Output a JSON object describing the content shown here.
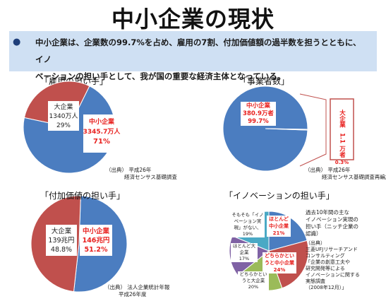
{
  "title": "中小企業の現状",
  "bullet": {
    "line1": "中小企業は、企業数の99.7%を占め、雇用の7割、付加価値額の過半数を担うとともに、イノ",
    "line2": "ベーションの担い手として、我が国の重要な経済主体となっている。"
  },
  "colors": {
    "blue": "#4b7dc0",
    "red": "#c0504d",
    "green": "#9bbb59",
    "purple": "#7f62a4",
    "teal": "#4aa9c5",
    "bright_red": "#e8201e",
    "banner": "#cfe0f3"
  },
  "chart_data": [
    {
      "type": "pie",
      "title": "「雇用の担い手」",
      "slices": [
        {
          "name": "中小企業",
          "value_text": "3345.7万人",
          "pct_text": "71%",
          "value": 71
        },
        {
          "name": "大企業",
          "value_text": "1340万人",
          "pct_text": "29%",
          "value": 29
        }
      ],
      "source": {
        "line1": "（出典） 平成26年",
        "line2": "経済センサス基礎調査"
      }
    },
    {
      "type": "pie",
      "title": "「事業者数」",
      "slices": [
        {
          "name": "中小企業",
          "value_text": "380.9万者",
          "pct_text": "99.7%",
          "value": 99.7
        },
        {
          "name": "大企業",
          "value_text": "1.1 万者",
          "pct_text": "0.3%",
          "value": 0.3
        }
      ],
      "source": {
        "line1": "（出典） 平成26年",
        "line2": "経済センサス基礎調査再編加工"
      }
    },
    {
      "type": "pie",
      "title": "「付加価値の担い手」",
      "slices": [
        {
          "name": "中小企業",
          "value_text": "146兆円",
          "pct_text": "51.2%",
          "value": 51.2
        },
        {
          "name": "大企業",
          "value_text": "139兆円",
          "pct_text": "48.8%",
          "value": 48.8
        }
      ],
      "source": {
        "line1": "（出典） 法人企業統計年報",
        "line2": "平成26年度"
      }
    },
    {
      "type": "pie",
      "title": "「イノベーションの担い手」",
      "slices": [
        {
          "name": "ほとんど中小企業",
          "pct_text": "21%",
          "value": 21
        },
        {
          "name": "どちらかというと中小企業",
          "pct_text": "24%",
          "value": 24
        },
        {
          "name": "どちらかというと大企業",
          "pct_text": "20%",
          "value": 20
        },
        {
          "name": "ほとんど大企業",
          "pct_text": "17%",
          "value": 17
        },
        {
          "name": "そもそも「イノベーション実現」がない",
          "pct_text": "19%",
          "value": 19
        }
      ],
      "note": {
        "line1": "過去10年間の主な",
        "line2": "イノベーション実現の",
        "line3": "担い手（ニッチ企業の",
        "line4": "認識）"
      },
      "source": {
        "line1": "（出典）",
        "line2": "三菱UFJリサーチアンド",
        "line3": "コンサルティング",
        "line4": "「企業の創意工夫や",
        "line5": "研究開発等による",
        "line6": "イノベーションに関する",
        "line7": "実態調査",
        "line8": "（2008年12月）」"
      }
    }
  ]
}
